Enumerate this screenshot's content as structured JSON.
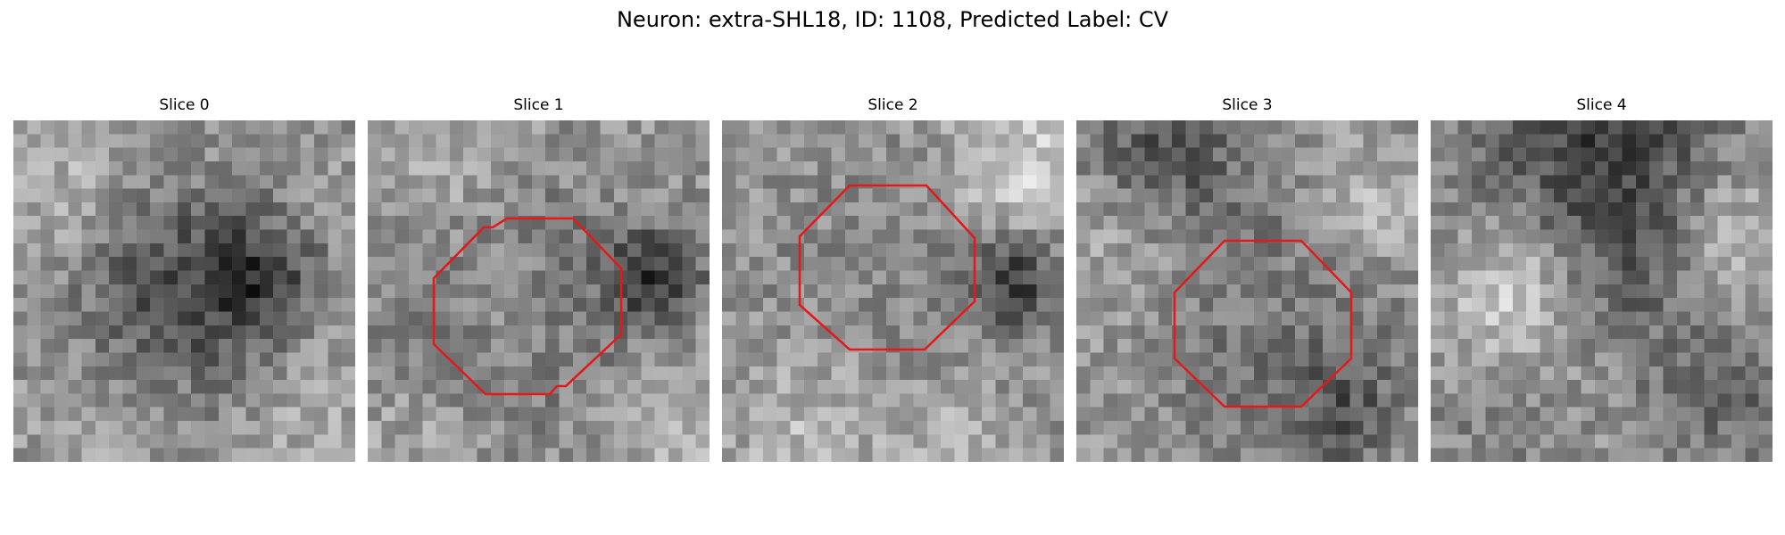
{
  "figure": {
    "title": "Neuron: extra-SHL18, ID: 1108, Predicted Label: CV"
  },
  "slices": [
    {
      "label": "Slice 0",
      "has_contour": false
    },
    {
      "label": "Slice 1",
      "has_contour": true
    },
    {
      "label": "Slice 2",
      "has_contour": true
    },
    {
      "label": "Slice 3",
      "has_contour": true
    },
    {
      "label": "Slice 4",
      "has_contour": false
    }
  ],
  "colors": {
    "contour": "#e31a1c",
    "background": "#ffffff"
  }
}
